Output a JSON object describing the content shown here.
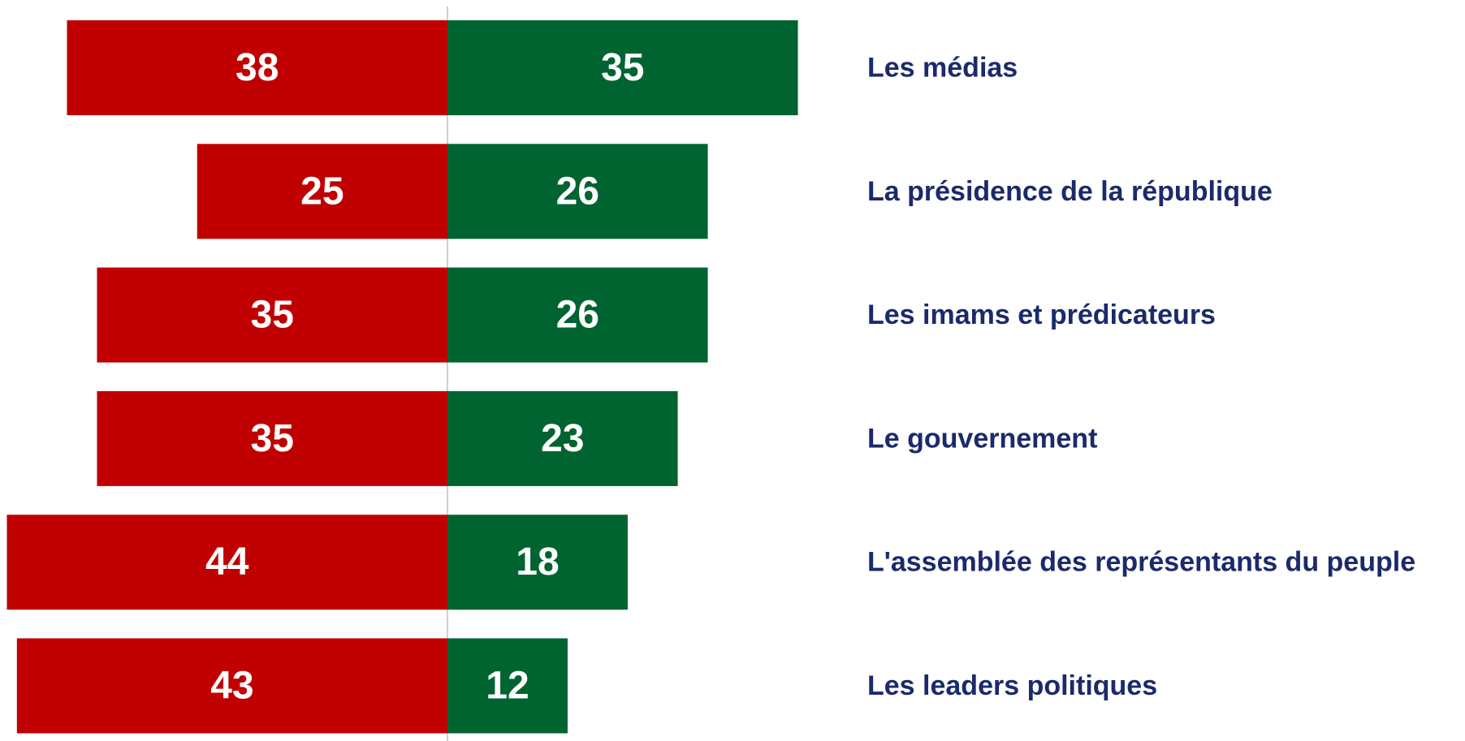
{
  "chart_data": {
    "type": "diverging-bar",
    "categories": [
      "Les médias",
      "La présidence de la république",
      "Les imams et prédicateurs",
      "Le gouvernement",
      "L'assemblée des représentants du peuple",
      "Les leaders politiques"
    ],
    "series": [
      {
        "color": "#c00000",
        "values": [
          38,
          25,
          35,
          35,
          44,
          43
        ]
      },
      {
        "color": "#006430",
        "values": [
          35,
          26,
          26,
          23,
          18,
          12
        ]
      }
    ]
  }
}
